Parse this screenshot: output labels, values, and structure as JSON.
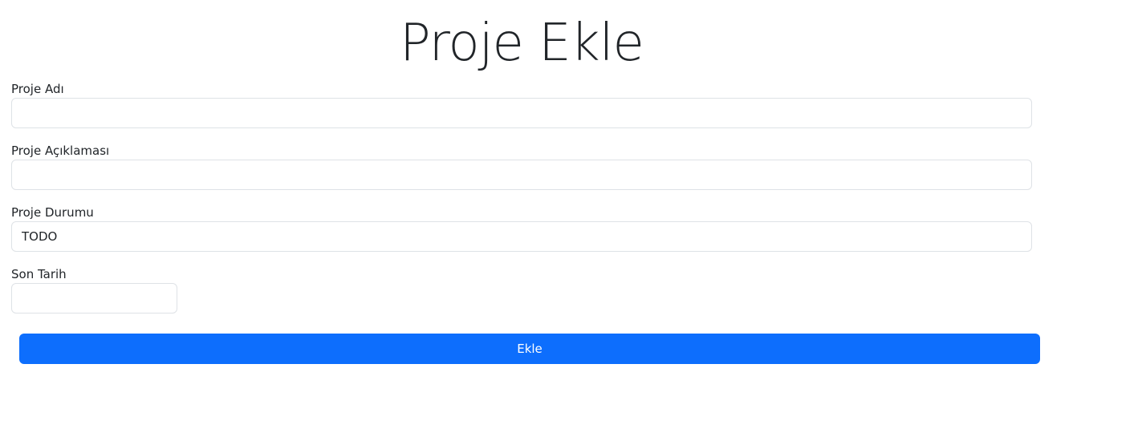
{
  "page": {
    "title": "Proje Ekle"
  },
  "form": {
    "name": {
      "label": "Proje Adı",
      "value": ""
    },
    "description": {
      "label": "Proje Açıklaması",
      "value": ""
    },
    "status": {
      "label": "Proje Durumu",
      "value": "TODO"
    },
    "due_date": {
      "label": "Son Tarih",
      "value": ""
    },
    "submit_label": "Ekle"
  },
  "colors": {
    "primary": "#0d6efd",
    "border": "#dee2e6",
    "text": "#212529"
  }
}
